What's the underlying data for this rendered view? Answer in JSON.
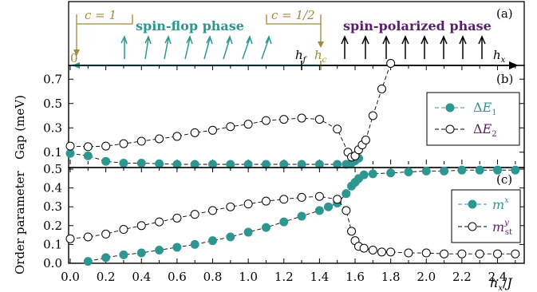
{
  "panel_a": {
    "panel_label": "(a)",
    "c1_label": "c = 1",
    "c_half_label": "c = 1/2",
    "zero_label": "0",
    "spin_flop_label": "spin-flop phase",
    "polarized_label": "spin-polarized phase",
    "hf_label": "h",
    "hf_sub": "f",
    "hc_label": "h",
    "hc_sub": "c",
    "axis_label": "h",
    "axis_sub": "x",
    "colors": {
      "teal": "#2e9690",
      "olive": "#a08a35",
      "purple": "#5a1e6e",
      "black": "#000000"
    }
  },
  "chart_data": [
    {
      "type": "line",
      "panel_label": "(b)",
      "ylabel": "Gap (meV)",
      "xlim": [
        0.0,
        2.55
      ],
      "ylim": [
        0.0,
        0.8
      ],
      "yticks": [
        0.1,
        0.3,
        0.5,
        0.7
      ],
      "grid": false,
      "legend": "right",
      "series": [
        {
          "name": "ΔE1",
          "marker": "filled-circle",
          "color": "#2e9690",
          "x": [
            0.0,
            0.1,
            0.2,
            0.3,
            0.4,
            0.5,
            0.6,
            0.7,
            0.8,
            0.9,
            1.0,
            1.1,
            1.2,
            1.3,
            1.4,
            1.5,
            1.55,
            1.58,
            1.6,
            1.62
          ],
          "y": [
            0.09,
            0.07,
            0.025,
            0.01,
            0.01,
            0.005,
            0.0,
            0.0,
            0.0,
            0.0,
            0.0,
            0.0,
            0.0,
            0.0,
            0.0,
            0.0,
            0.0,
            0.01,
            0.03,
            0.05
          ]
        },
        {
          "name": "ΔE2",
          "marker": "open-circle",
          "color": "#000000",
          "x": [
            0.0,
            0.1,
            0.2,
            0.3,
            0.4,
            0.5,
            0.6,
            0.7,
            0.8,
            0.9,
            1.0,
            1.1,
            1.2,
            1.3,
            1.4,
            1.5,
            1.56,
            1.58,
            1.6,
            1.62,
            1.64,
            1.66,
            1.7,
            1.75,
            1.8
          ],
          "y": [
            0.15,
            0.145,
            0.15,
            0.17,
            0.19,
            0.21,
            0.23,
            0.26,
            0.28,
            0.31,
            0.33,
            0.36,
            0.37,
            0.38,
            0.37,
            0.29,
            0.1,
            0.06,
            0.07,
            0.12,
            0.16,
            0.2,
            0.4,
            0.62,
            0.83
          ]
        }
      ],
      "legend_labels": [
        {
          "symbol": "Δ",
          "main": "E",
          "sub": "1"
        },
        {
          "symbol": "Δ",
          "main": "E",
          "sub": "2"
        }
      ]
    },
    {
      "type": "line",
      "panel_label": "(c)",
      "ylabel": "Order parameter",
      "xlabel": "h_x / J",
      "xlim": [
        0.0,
        2.55
      ],
      "ylim": [
        0.0,
        0.5
      ],
      "xticks": [
        0.0,
        0.2,
        0.4,
        0.6,
        0.8,
        1.0,
        1.2,
        1.4,
        1.6,
        1.8,
        2.0,
        2.2,
        2.4
      ],
      "yticks": [
        0.0,
        0.1,
        0.2,
        0.3,
        0.4,
        0.5
      ],
      "grid": false,
      "legend": "right",
      "series": [
        {
          "name": "m^x",
          "marker": "filled-circle",
          "color": "#2e9690",
          "x": [
            0.1,
            0.2,
            0.3,
            0.4,
            0.5,
            0.6,
            0.7,
            0.8,
            0.9,
            1.0,
            1.1,
            1.2,
            1.3,
            1.4,
            1.45,
            1.5,
            1.55,
            1.58,
            1.6,
            1.62,
            1.65,
            1.7,
            1.8,
            1.9,
            2.0,
            2.1,
            2.2,
            2.3,
            2.4,
            2.5
          ],
          "y": [
            0.01,
            0.03,
            0.045,
            0.055,
            0.07,
            0.085,
            0.1,
            0.12,
            0.14,
            0.165,
            0.19,
            0.22,
            0.25,
            0.28,
            0.3,
            0.32,
            0.37,
            0.41,
            0.43,
            0.45,
            0.47,
            0.475,
            0.48,
            0.485,
            0.49,
            0.49,
            0.495,
            0.495,
            0.495,
            0.495
          ]
        },
        {
          "name": "m^y_st",
          "marker": "open-circle",
          "color": "#000000",
          "x": [
            0.0,
            0.1,
            0.2,
            0.3,
            0.4,
            0.5,
            0.6,
            0.7,
            0.8,
            0.9,
            1.0,
            1.1,
            1.2,
            1.3,
            1.4,
            1.5,
            1.55,
            1.58,
            1.6,
            1.62,
            1.65,
            1.7,
            1.75,
            1.8,
            1.9,
            2.0,
            2.1,
            2.2,
            2.3,
            2.4,
            2.5
          ],
          "y": [
            0.13,
            0.14,
            0.155,
            0.18,
            0.2,
            0.22,
            0.24,
            0.26,
            0.28,
            0.3,
            0.315,
            0.33,
            0.34,
            0.35,
            0.355,
            0.34,
            0.28,
            0.17,
            0.12,
            0.09,
            0.08,
            0.07,
            0.06,
            0.06,
            0.055,
            0.055,
            0.05,
            0.05,
            0.05,
            0.05,
            0.05
          ]
        }
      ],
      "legend_labels": [
        {
          "main": "m",
          "sup": "x",
          "sub": ""
        },
        {
          "main": "m",
          "sup": "y",
          "sub": "st"
        }
      ]
    }
  ]
}
